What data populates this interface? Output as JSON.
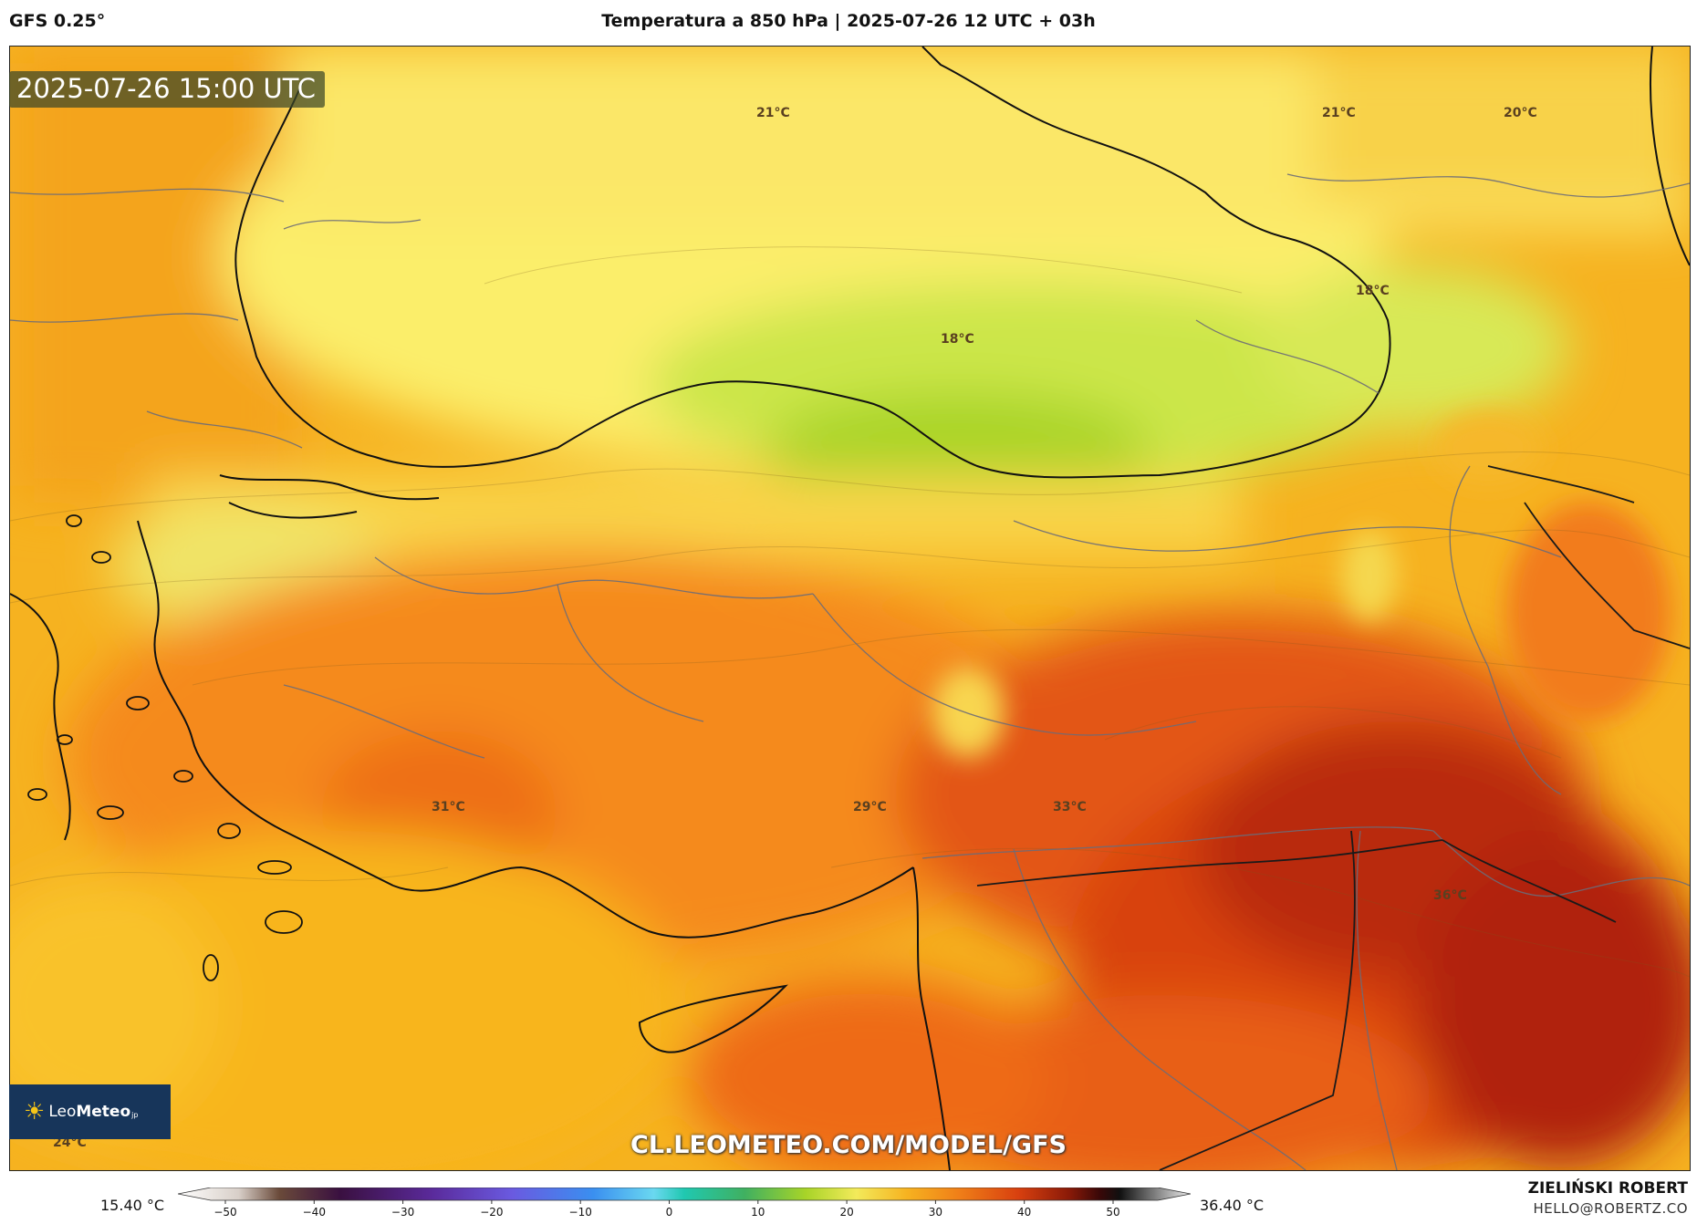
{
  "header": {
    "model": "GFS 0.25°",
    "title": "Temperatura a 850 hPa | 2025-07-26 12 UTC + 03h"
  },
  "map": {
    "valid_time": "2025-07-26 15:00 UTC",
    "temperature_labels": [
      "21°C",
      "21°C",
      "20°C",
      "18°C",
      "18°C",
      "31°C",
      "29°C",
      "33°C",
      "36°C",
      "24°C"
    ],
    "watermark": "CL.LEOMETEO.COM/MODEL/GFS",
    "logo": {
      "prefix": "Leo",
      "suffix": "Meteo",
      "sub": "jp"
    }
  },
  "colorbar": {
    "min_label": "15.40 °C",
    "max_label": "36.40 °C",
    "ticks": [
      "−50",
      "−40",
      "−30",
      "−20",
      "−10",
      "0",
      "10",
      "20",
      "30",
      "40",
      "50"
    ]
  },
  "footer": {
    "author": "ZIELIŃSKI ROBERT",
    "email": "HELLO@ROBERTZ.CO"
  },
  "colors": {
    "sea_yellow": "#fbea63",
    "cool_green": "#b8dc3a",
    "warm_orange": "#f59a1e",
    "hot_red": "#d9400f",
    "extreme_red": "#a81e06"
  }
}
